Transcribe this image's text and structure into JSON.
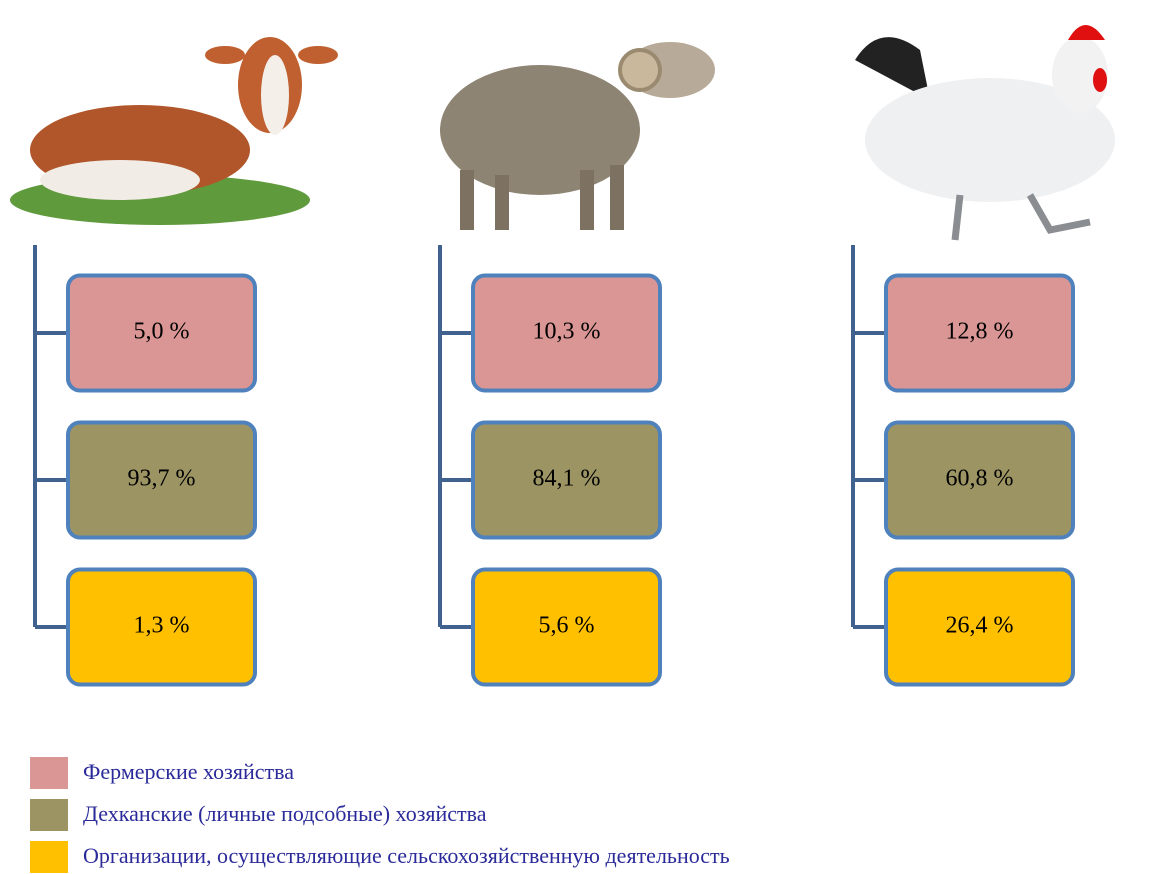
{
  "groups": [
    {
      "values": [
        "5,0 %",
        "93,7 %",
        "1,3 %"
      ]
    },
    {
      "values": [
        "10,3 %",
        "84,1 %",
        "5,6 %"
      ]
    },
    {
      "values": [
        "12,8 %",
        "60,8 %",
        "26,4 %"
      ]
    }
  ],
  "legend": [
    {
      "label": "Фермерские хозяйства",
      "color": "#d99694"
    },
    {
      "label": "Дехканские (личные подсобные) хозяйства",
      "color": "#9c9462"
    },
    {
      "label": "Организации, осуществляющие сельскохозяйственную деятельность",
      "color": "#ffc000"
    }
  ]
}
